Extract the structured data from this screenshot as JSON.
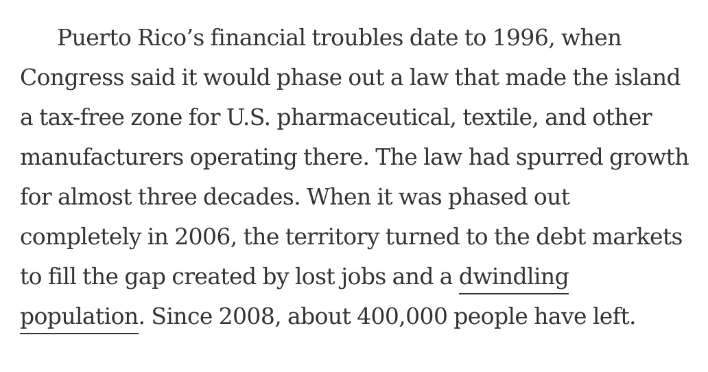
{
  "article": {
    "text_before_link": "Puerto Rico’s financial troubles date to 1996, when Congress said it would phase out a law that made the island a tax-free zone for U.S. pharmaceutical, textile, and other manufacturers operating there. The law had spurred growth for almost three decades. When it was phased out completely in 2006, the territory turned to the debt markets to fill the gap created by lost jobs and a ",
    "link_text": "dwindling population",
    "text_after_link": ". Since 2008, about 400,000 people have left."
  }
}
